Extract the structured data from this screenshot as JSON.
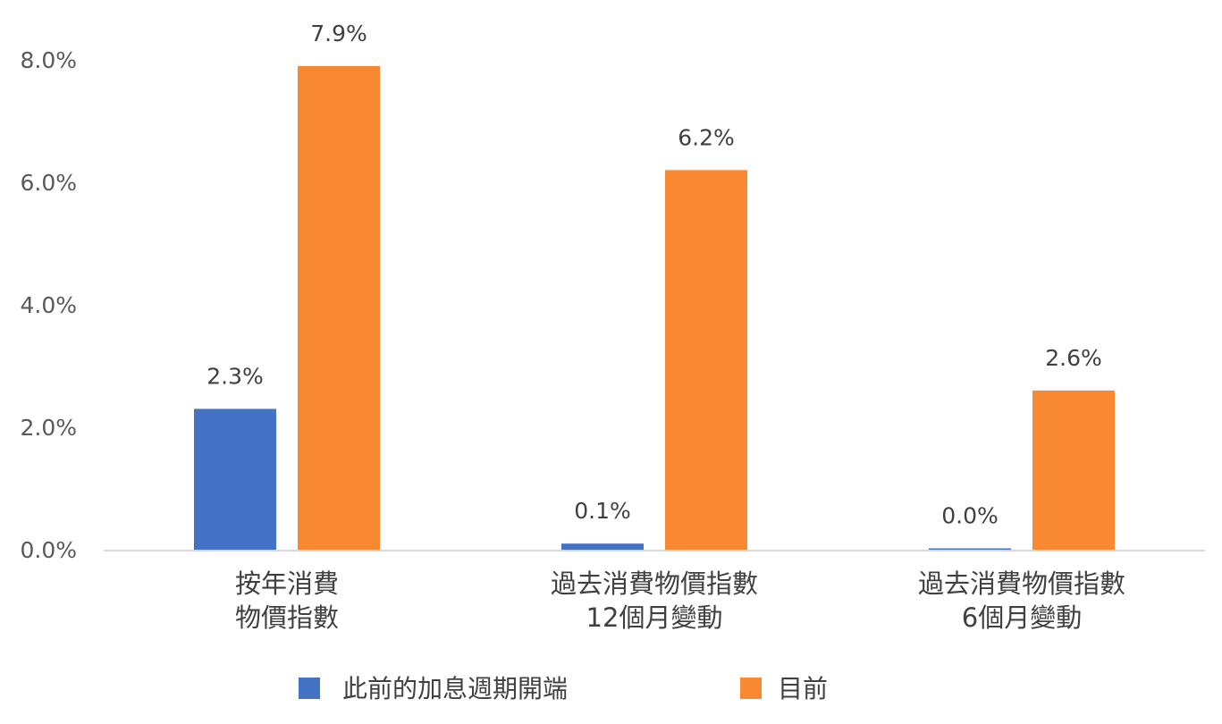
{
  "chart_data": {
    "type": "bar",
    "categories": [
      [
        "按年消費",
        "物價指數"
      ],
      [
        "過去消費物價指數",
        "12個月變動"
      ],
      [
        "過去消費物價指數",
        "6個月變動"
      ]
    ],
    "series": [
      {
        "name": "此前的加息週期開端",
        "color": "#4472C4",
        "values": [
          2.3,
          0.1,
          0.0
        ],
        "labels": [
          "2.3%",
          "0.1%",
          "0.0%"
        ]
      },
      {
        "name": "目前",
        "color": "#F98833",
        "values": [
          7.9,
          6.2,
          2.6
        ],
        "labels": [
          "7.9%",
          "6.2%",
          "2.6%"
        ]
      }
    ],
    "ylim": [
      0,
      8
    ],
    "yticks": [
      "0.0%",
      "2.0%",
      "4.0%",
      "6.0%",
      "8.0%"
    ],
    "ytick_values": [
      0,
      2,
      4,
      6,
      8
    ],
    "grid": false,
    "legend_position": "bottom"
  }
}
